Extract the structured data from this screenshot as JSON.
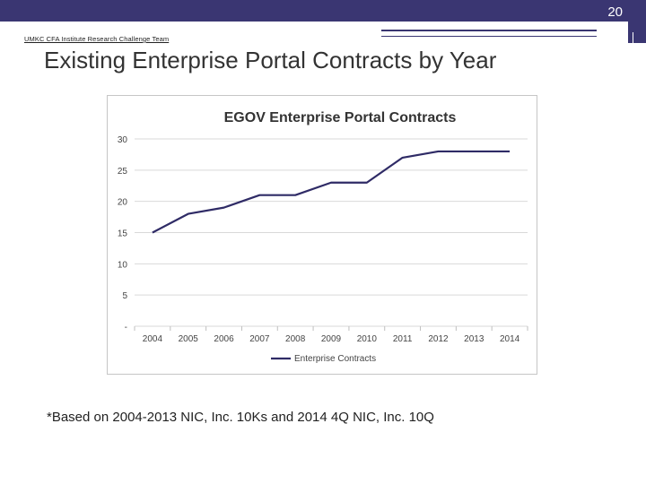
{
  "slide": {
    "number": "20",
    "team_label": "UMKC CFA Institute Research Challenge Team",
    "title": "Existing Enterprise Portal Contracts by Year",
    "footnote": "*Based on 2004-2013 NIC, Inc. 10Ks and 2014 4Q NIC, Inc. 10Q"
  },
  "colors": {
    "bar": "#3a3672",
    "series": "#2f2b66",
    "grid": "#d9d9d9"
  },
  "chart_data": {
    "type": "line",
    "title": "EGOV Enterprise Portal Contracts",
    "xlabel": "",
    "ylabel": "",
    "categories": [
      "2004",
      "2005",
      "2006",
      "2007",
      "2008",
      "2009",
      "2010",
      "2011",
      "2012",
      "2013",
      "2014"
    ],
    "y_tick_labels": [
      "-",
      "5",
      "10",
      "15",
      "20",
      "25",
      "30"
    ],
    "ylim": [
      0,
      30
    ],
    "grid": true,
    "legend_position": "bottom",
    "series": [
      {
        "name": "Enterprise Contracts",
        "values": [
          15,
          18,
          19,
          21,
          21,
          23,
          23,
          27,
          28,
          28,
          28
        ]
      }
    ]
  }
}
